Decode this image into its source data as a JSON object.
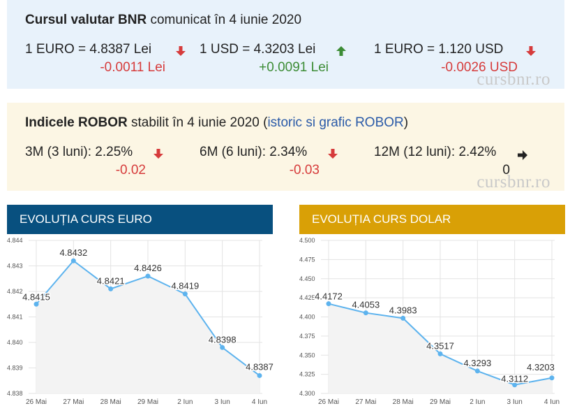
{
  "fx": {
    "title_bold": "Cursul valutar BNR",
    "title_rest": " comunicat în 4 iunie 2020",
    "rates": [
      {
        "label": "1 EURO = 4.8387 Lei",
        "change": "-0.0011 Lei",
        "direction": "down"
      },
      {
        "label": "1 USD = 4.3203 Lei",
        "change": "+0.0091 Lei",
        "direction": "up"
      },
      {
        "label": "1 EURO = 1.120 USD",
        "change": "-0.0026 USD",
        "direction": "down"
      }
    ],
    "watermark": "cursbnr.ro"
  },
  "robor": {
    "title_bold": "Indicele ROBOR",
    "title_rest": " stabilit în 4 iunie 2020 (",
    "link": "istoric si grafic ROBOR",
    "title_end": ")",
    "rates": [
      {
        "label": "3M (3 luni): 2.25%",
        "change": "-0.02",
        "direction": "down"
      },
      {
        "label": "6M (6 luni): 2.34%",
        "change": "-0.03",
        "direction": "down"
      },
      {
        "label": "12M (12 luni): 2.42%",
        "change": "0",
        "direction": "flat"
      }
    ],
    "watermark": "cursbnr.ro"
  },
  "colors": {
    "down": "#d63b3b",
    "up": "#3c8c35",
    "flat": "#222222",
    "euro_header": "#08507f",
    "usd_header": "#d9a006",
    "line": "#5db3ee"
  },
  "chart_data": [
    {
      "type": "line",
      "title": "EVOLUȚIA CURS EURO",
      "x": [
        "26 Mai",
        "27 Mai",
        "28 Mai",
        "29 Mai",
        "2 Iun",
        "3 Iun",
        "4 Iun"
      ],
      "series": [
        {
          "values": [
            4.8415,
            4.8432,
            4.8421,
            4.8426,
            4.8419,
            4.8398,
            4.8387
          ]
        }
      ],
      "data_labels": [
        "4.8415",
        "4.8432",
        "4.8421",
        "4.8426",
        "4.8419",
        "4.8398",
        "4.8387"
      ],
      "yticks": [
        "4.844",
        "4.843",
        "4.842",
        "4.841",
        "4.840",
        "4.839",
        "4.838"
      ],
      "ylim": [
        4.838,
        4.844
      ],
      "grid": true
    },
    {
      "type": "line",
      "title": "EVOLUȚIA CURS DOLAR",
      "x": [
        "26 Mai",
        "27 Mai",
        "28 Mai",
        "29 Mai",
        "2 Iun",
        "3 Iun",
        "4 Iun"
      ],
      "series": [
        {
          "values": [
            4.4172,
            4.4053,
            4.3983,
            4.3517,
            4.3293,
            4.3112,
            4.3203
          ]
        }
      ],
      "data_labels": [
        "4.4172",
        "4.4053",
        "4.3983",
        "4.3517",
        "4.3293",
        "4.3112",
        "4.3203"
      ],
      "yticks": [
        "4.500",
        "4.475",
        "4.450",
        "4.425",
        "4.400",
        "4.375",
        "4.350",
        "4.325",
        "4.300"
      ],
      "ylim": [
        4.3,
        4.5
      ],
      "grid": true
    }
  ]
}
